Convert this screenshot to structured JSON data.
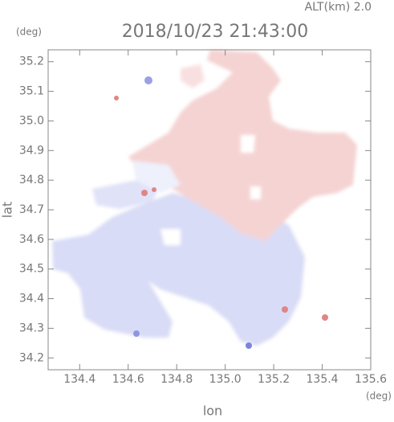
{
  "chart_data": {
    "type": "map",
    "title": "2018/10/23 21:43:00",
    "subtitle": "ALT(km) 2.0",
    "x_label": "lon",
    "y_label": "lat",
    "x_unit": "(deg)",
    "y_unit": "(deg)",
    "xlim": [
      134.27,
      135.6
    ],
    "ylim": [
      34.16,
      35.24
    ],
    "xticks": [
      134.4,
      134.6,
      134.8,
      {
        "value": 135,
        "label": "135.0"
      },
      135.2,
      135.4,
      135.6
    ],
    "yticks": [
      34.2,
      34.3,
      34.4,
      34.5,
      34.6,
      34.7,
      34.8,
      34.9,
      {
        "value": 35,
        "label": "35.0"
      },
      35.1,
      35.2
    ]
  }
}
